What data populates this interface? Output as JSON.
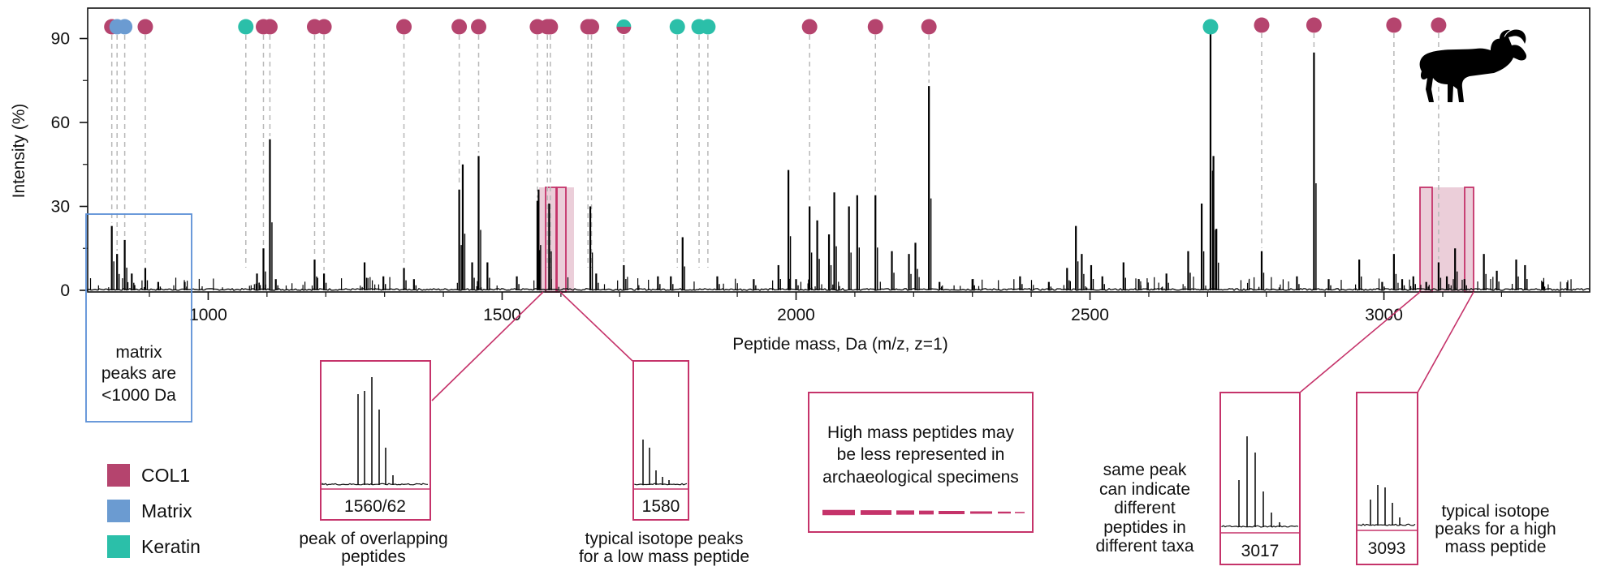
{
  "colors": {
    "col1": "#b5446e",
    "matrix": "#6b9bd1",
    "keratin": "#2bbfa9",
    "inset_border": "#c5336a",
    "matrix_box": "#5b8fd6",
    "highlight": "#e8c6d2"
  },
  "legend": [
    {
      "label": "COL1",
      "color": "#b5446e"
    },
    {
      "label": "Matrix",
      "color": "#6b9bd1"
    },
    {
      "label": "Keratin",
      "color": "#2bbfa9"
    }
  ],
  "icons": {
    "goat": "goat-silhouette-icon"
  },
  "annotations": {
    "matrix_box": "matrix peaks are <1000 Da",
    "matrix_box_lines": [
      "matrix",
      "peaks are",
      "<1000 Da"
    ],
    "inset1_label": "1560/62",
    "inset1_caption": [
      "peak of overlapping",
      "peptides"
    ],
    "inset2_label": "1580",
    "inset2_caption": [
      "typical isotope peaks",
      "for a low mass peptide"
    ],
    "high_mass_note": [
      "High mass peptides may",
      "be less represented in",
      "archaeological specimens"
    ],
    "inset3_label": "3017",
    "inset3_caption": [
      "same peak",
      "can indicate",
      "different",
      "peptides in",
      "different taxa"
    ],
    "inset4_label": "3093",
    "inset4_caption": [
      "typical isotope",
      "peaks for a high",
      "mass peptide"
    ]
  },
  "chart_data": {
    "type": "bar",
    "title": "",
    "xlabel": "Peptide mass, Da (m/z, z=1)",
    "ylabel": "Intensity (%)",
    "xlim": [
      800,
      3350
    ],
    "ylim": [
      0,
      105
    ],
    "xticks": [
      "1000",
      "1500",
      "2000",
      "2500",
      "3000"
    ],
    "xtick_values": [
      1000,
      1500,
      2000,
      2500,
      3000
    ],
    "yticks": [
      "0",
      "30",
      "60",
      "90"
    ],
    "ytick_values": [
      0,
      30,
      60,
      90
    ],
    "peaks": [
      {
        "x": 836,
        "y": 23
      },
      {
        "x": 845,
        "y": 13
      },
      {
        "x": 858,
        "y": 18
      },
      {
        "x": 870,
        "y": 6
      },
      {
        "x": 893,
        "y": 8
      },
      {
        "x": 915,
        "y": 3
      },
      {
        "x": 960,
        "y": 3
      },
      {
        "x": 1083,
        "y": 6
      },
      {
        "x": 1094,
        "y": 15
      },
      {
        "x": 1105,
        "y": 54
      },
      {
        "x": 1115,
        "y": 4
      },
      {
        "x": 1181,
        "y": 11
      },
      {
        "x": 1197,
        "y": 6
      },
      {
        "x": 1266,
        "y": 10
      },
      {
        "x": 1298,
        "y": 5
      },
      {
        "x": 1333,
        "y": 8
      },
      {
        "x": 1350,
        "y": 4
      },
      {
        "x": 1427,
        "y": 36
      },
      {
        "x": 1433,
        "y": 45
      },
      {
        "x": 1449,
        "y": 10
      },
      {
        "x": 1460,
        "y": 48
      },
      {
        "x": 1475,
        "y": 10
      },
      {
        "x": 1525,
        "y": 5
      },
      {
        "x": 1560,
        "y": 32
      },
      {
        "x": 1562,
        "y": 36
      },
      {
        "x": 1580,
        "y": 31
      },
      {
        "x": 1650,
        "y": 30
      },
      {
        "x": 1660,
        "y": 6
      },
      {
        "x": 1707,
        "y": 9
      },
      {
        "x": 1765,
        "y": 5
      },
      {
        "x": 1787,
        "y": 5
      },
      {
        "x": 1807,
        "y": 19
      },
      {
        "x": 1866,
        "y": 5
      },
      {
        "x": 1928,
        "y": 4
      },
      {
        "x": 1970,
        "y": 9
      },
      {
        "x": 1987,
        "y": 43
      },
      {
        "x": 2000,
        "y": 4
      },
      {
        "x": 2023,
        "y": 30
      },
      {
        "x": 2036,
        "y": 25
      },
      {
        "x": 2056,
        "y": 20
      },
      {
        "x": 2065,
        "y": 35
      },
      {
        "x": 2090,
        "y": 30
      },
      {
        "x": 2104,
        "y": 34
      },
      {
        "x": 2135,
        "y": 34
      },
      {
        "x": 2163,
        "y": 14
      },
      {
        "x": 2192,
        "y": 13
      },
      {
        "x": 2203,
        "y": 17
      },
      {
        "x": 2226,
        "y": 73
      },
      {
        "x": 2244,
        "y": 3
      },
      {
        "x": 2300,
        "y": 4
      },
      {
        "x": 2381,
        "y": 5
      },
      {
        "x": 2430,
        "y": 3
      },
      {
        "x": 2461,
        "y": 8
      },
      {
        "x": 2476,
        "y": 23
      },
      {
        "x": 2486,
        "y": 13
      },
      {
        "x": 2502,
        "y": 9
      },
      {
        "x": 2521,
        "y": 5
      },
      {
        "x": 2557,
        "y": 10
      },
      {
        "x": 2583,
        "y": 4
      },
      {
        "x": 2630,
        "y": 6
      },
      {
        "x": 2667,
        "y": 14
      },
      {
        "x": 2690,
        "y": 31
      },
      {
        "x": 2705,
        "y": 95
      },
      {
        "x": 2710,
        "y": 48
      },
      {
        "x": 2715,
        "y": 22
      },
      {
        "x": 2792,
        "y": 14
      },
      {
        "x": 2852,
        "y": 5
      },
      {
        "x": 2881,
        "y": 85
      },
      {
        "x": 2906,
        "y": 4
      },
      {
        "x": 2958,
        "y": 11
      },
      {
        "x": 2997,
        "y": 3
      },
      {
        "x": 3017,
        "y": 13
      },
      {
        "x": 3031,
        "y": 4
      },
      {
        "x": 3050,
        "y": 5
      },
      {
        "x": 3072,
        "y": 3
      },
      {
        "x": 3093,
        "y": 10
      },
      {
        "x": 3107,
        "y": 5
      },
      {
        "x": 3121,
        "y": 15
      },
      {
        "x": 3137,
        "y": 4
      },
      {
        "x": 3170,
        "y": 13
      },
      {
        "x": 3192,
        "y": 7
      },
      {
        "x": 3225,
        "y": 11
      },
      {
        "x": 3240,
        "y": 9
      },
      {
        "x": 3270,
        "y": 3
      }
    ],
    "markers": [
      {
        "x": 1064,
        "type": "keratin"
      },
      {
        "x": 1094,
        "type": "col1"
      },
      {
        "x": 1105,
        "type": "col1"
      },
      {
        "x": 1181,
        "type": "col1"
      },
      {
        "x": 1197,
        "type": "col1"
      },
      {
        "x": 1333,
        "type": "col1"
      },
      {
        "x": 1427,
        "type": "col1"
      },
      {
        "x": 1460,
        "type": "col1"
      },
      {
        "x": 1560,
        "type": "col1"
      },
      {
        "x": 1577,
        "type": "col1"
      },
      {
        "x": 1582,
        "type": "col1"
      },
      {
        "x": 1646,
        "type": "col1"
      },
      {
        "x": 1652,
        "type": "col1"
      },
      {
        "x": 1707,
        "type": "col1_keratin"
      },
      {
        "x": 1798,
        "type": "keratin"
      },
      {
        "x": 1835,
        "type": "keratin"
      },
      {
        "x": 1850,
        "type": "keratin"
      },
      {
        "x": 2023,
        "type": "col1"
      },
      {
        "x": 2135,
        "type": "col1"
      },
      {
        "x": 2226,
        "type": "col1"
      },
      {
        "x": 2705,
        "type": "keratin"
      },
      {
        "x": 2792,
        "type": "col1"
      },
      {
        "x": 2881,
        "type": "col1"
      },
      {
        "x": 3017,
        "type": "col1"
      },
      {
        "x": 3093,
        "type": "col1"
      },
      {
        "x": 836,
        "type": "col1"
      },
      {
        "x": 845,
        "type": "matrix"
      },
      {
        "x": 858,
        "type": "matrix"
      },
      {
        "x": 893,
        "type": "col1"
      }
    ],
    "highlight_ranges": [
      [
        1540,
        1600
      ],
      [
        3013,
        3102
      ]
    ],
    "grid": false,
    "legend_position": "bottom-left"
  }
}
